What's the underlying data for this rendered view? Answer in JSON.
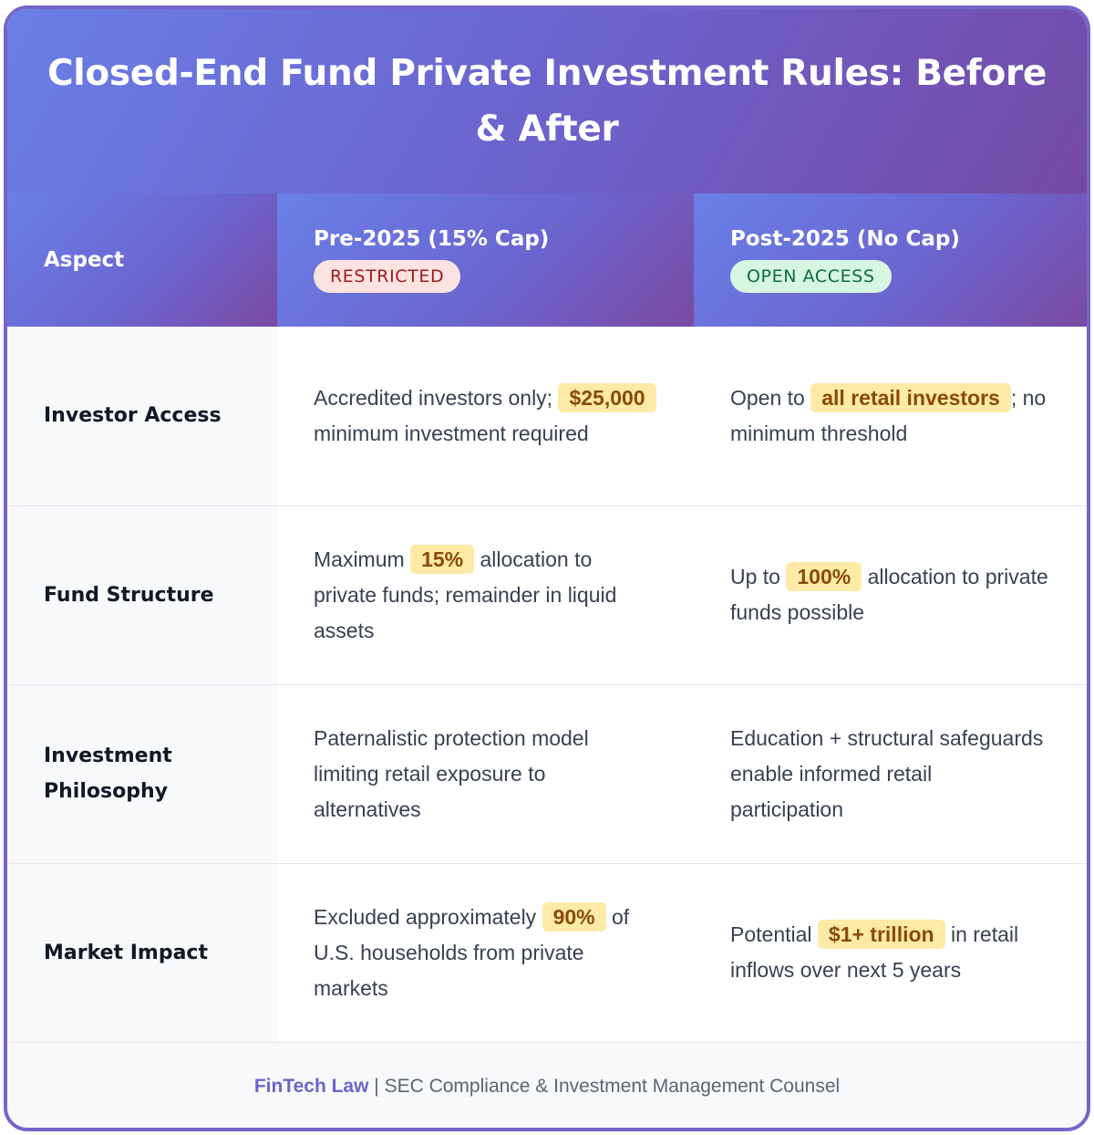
{
  "title": "Closed-End Fund Private Investment Rules: Before & After",
  "header": {
    "aspect": "Aspect",
    "pre": {
      "label": "Pre-2025 (15% Cap)",
      "badge": "RESTRICTED"
    },
    "post": {
      "label": "Post-2025 (No Cap)",
      "badge": "OPEN ACCESS"
    }
  },
  "rows": [
    {
      "aspect": "Investor Access",
      "pre": {
        "before": "Accredited investors only; ",
        "highlight": "$25,000",
        "after": " minimum investment required"
      },
      "post": {
        "before": "Open to ",
        "highlight": "all retail investors",
        "after": "; no minimum threshold"
      }
    },
    {
      "aspect": "Fund Structure",
      "pre": {
        "before": "Maximum ",
        "highlight": "15%",
        "after": " allocation to private funds; remainder in liquid assets"
      },
      "post": {
        "before": "Up to ",
        "highlight": "100%",
        "after": " allocation to private funds possible"
      }
    },
    {
      "aspect": "Investment Philosophy",
      "pre": {
        "before": "Paternalistic protection model limiting retail exposure to alternatives",
        "highlight": "",
        "after": ""
      },
      "post": {
        "before": "Education + structural safeguards enable informed retail participation",
        "highlight": "",
        "after": ""
      }
    },
    {
      "aspect": "Market Impact",
      "pre": {
        "before": "Excluded approximately ",
        "highlight": "90%",
        "after": " of U.S. households from private markets"
      },
      "post": {
        "before": "Potential ",
        "highlight": "$1+ trillion",
        "after": " in retail inflows over next 5 years"
      }
    }
  ],
  "footer": {
    "brand": "FinTech Law",
    "separator": " | ",
    "text": "SEC Compliance & Investment Management Counsel"
  },
  "colors": {
    "header_gradient_start": "#6a80e8",
    "header_gradient_end": "#7a4aa3",
    "highlight_bg": "#fdeaa7",
    "restricted_badge_bg": "#fde2e2",
    "open_badge_bg": "#d6f5e3"
  }
}
